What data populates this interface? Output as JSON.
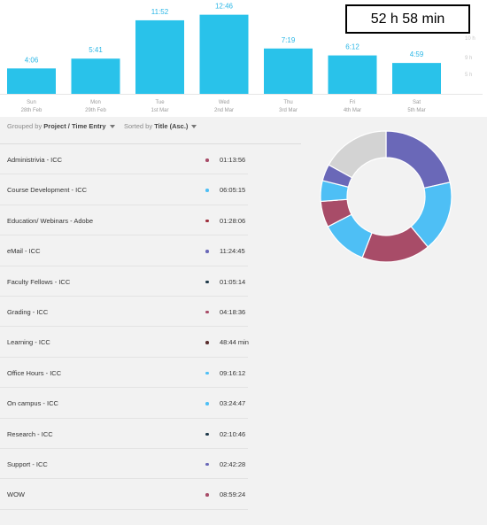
{
  "total": {
    "label": "52 h 58 min"
  },
  "chart_data": {
    "type": "bar",
    "categories": [
      "Sun 28th Feb",
      "Mon 29th Feb",
      "Tue 1st Mar",
      "Wed 2nd Mar",
      "Thu 3rd Mar",
      "Fri 4th Mar",
      "Sat 5th Mar"
    ],
    "days": [
      "Sun",
      "Mon",
      "Tue",
      "Wed",
      "Thu",
      "Fri",
      "Sat"
    ],
    "dates": [
      "28th Feb",
      "29th Feb",
      "1st Mar",
      "2nd Mar",
      "3rd Mar",
      "4th Mar",
      "5th Mar"
    ],
    "labels": [
      "4:06",
      "5:41",
      "11:52",
      "12:46",
      "7:19",
      "6:12",
      "4:59"
    ],
    "values": [
      4.1,
      5.683,
      11.867,
      12.767,
      7.317,
      6.2,
      4.983
    ],
    "ylim": [
      0,
      14
    ],
    "yticks": [
      "10 h",
      "9 h",
      "5 h"
    ],
    "colors": {
      "bar": "#29c2ea",
      "label": "#29b6e6"
    }
  },
  "sort": {
    "group_prefix": "Grouped by",
    "group_value": "Project / Time Entry",
    "sort_prefix": "Sorted by",
    "sort_value": "Title (Asc.)"
  },
  "entries": [
    {
      "title": "Administrivia - ICC",
      "duration": "01:13:56",
      "color": "#a84c68"
    },
    {
      "title": "Course Development - ICC",
      "duration": "06:05:15",
      "color": "#4ebff5"
    },
    {
      "title": "Education/ Webinars - Adobe",
      "duration": "01:28:06",
      "color": "#9e2e3c"
    },
    {
      "title": "eMail - ICC",
      "duration": "11:24:45",
      "color": "#6a68b8"
    },
    {
      "title": "Faculty Fellows - ICC",
      "duration": "01:05:14",
      "color": "#1f3a4a"
    },
    {
      "title": "Grading - ICC",
      "duration": "04:18:36",
      "color": "#a84c68"
    },
    {
      "title": "Learning - ICC",
      "duration": "48:44 min",
      "color": "#5a2e2e"
    },
    {
      "title": "Office Hours - ICC",
      "duration": "09:16:12",
      "color": "#4ebff5"
    },
    {
      "title": "On campus - ICC",
      "duration": "03:24:47",
      "color": "#4ebff5"
    },
    {
      "title": "Research - ICC",
      "duration": "02:10:46",
      "color": "#1f3a4a"
    },
    {
      "title": "Support - ICC",
      "duration": "02:42:28",
      "color": "#6a68b8"
    },
    {
      "title": "WOW",
      "duration": "08:59:24",
      "color": "#a84c68"
    }
  ],
  "donut": {
    "slices": [
      {
        "value": 11.41,
        "color": "#6a68b8"
      },
      {
        "value": 9.27,
        "color": "#4ebff5"
      },
      {
        "value": 8.99,
        "color": "#a84c68"
      },
      {
        "value": 6.09,
        "color": "#4ebff5"
      },
      {
        "value": 3.41,
        "color": "#a84c68"
      },
      {
        "value": 2.71,
        "color": "#4ebff5"
      },
      {
        "value": 2.18,
        "color": "#6a68b8"
      },
      {
        "value": 9.0,
        "color": "#d3d3d3"
      }
    ]
  }
}
